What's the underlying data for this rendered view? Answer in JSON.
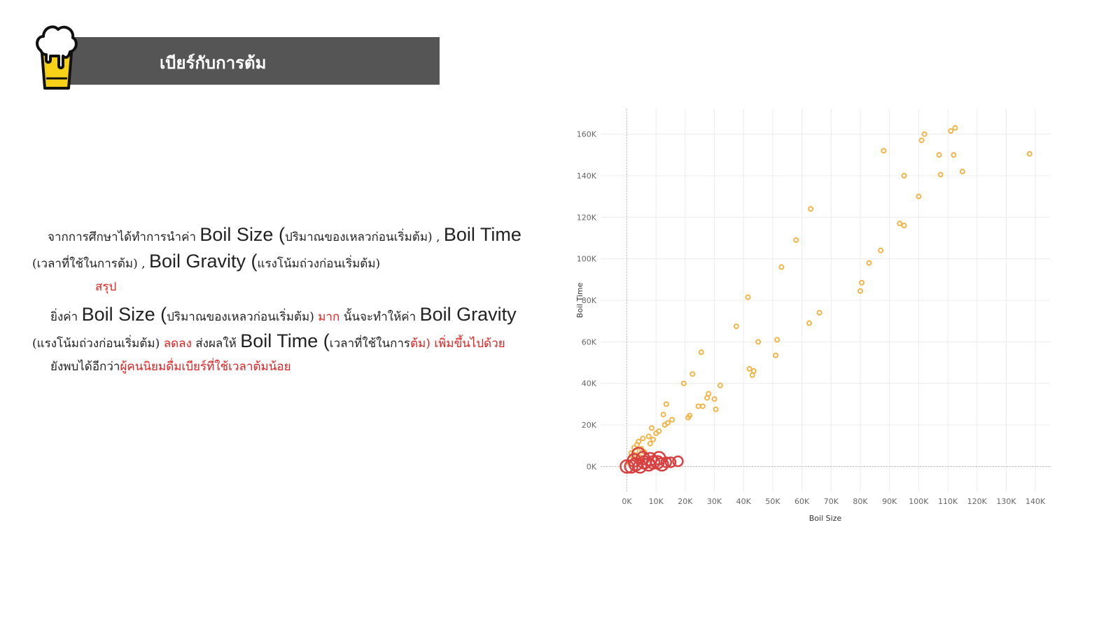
{
  "header": {
    "title": "เบียร์กับการต้ม"
  },
  "text": {
    "l1_a": "จากการศึกษาได้ทำการนำค่า ",
    "l1_b": "Boil Size",
    "l1_c": " (",
    "l1_d": "ปริมาณของเหลวก่อนเริ่มต้ม",
    "l1_e": ") , ",
    "l1_f": "Boil Time",
    "l2_a": "(เวลาที่ใช้ในการต้ม) , ",
    "l2_b": "Boil Gravity",
    "l2_c": " (",
    "l2_d": "แรงโน้มถ่วงก่อนเริ่มต้ม",
    "l2_e": ")",
    "l3": "สรุป",
    "l4_a": "ยิ่งค่า ",
    "l4_b": "Boil Size",
    "l4_c": " (",
    "l4_d": "ปริมาณของเหลวก่อนเริ่มต้ม",
    "l4_e": ") ",
    "l4_f": "มาก",
    "l4_g": " นั้นจะทำให้ค่า ",
    "l4_h": "Boil Gravity",
    "l5_a": "(แรงโน้มถ่วงก่อนเริ่มต้ม) ",
    "l5_b": "ลดลง",
    "l5_c": " ส่งผลให้ ",
    "l5_d": "Boil Time",
    "l5_e": " (",
    "l5_f": "เวลาที่ใช้ในการ",
    "l5_g": "ต้ม) เพิ่มขึ้นไปด้วย",
    "l6_a": "ยังพบได้อีกว่า",
    "l6_b": "ผู้คนนิยมดื่มเบียร์ที่ใช้เวลาต้มน้อย"
  },
  "colors": {
    "header_bg": "#555555",
    "accent_red": "#e02020",
    "point_orange": "#f2b447",
    "point_red": "#d94040",
    "beer_yellow": "#f7d117"
  },
  "icons": {
    "logo": "beer-glass-icon"
  },
  "chart_data": {
    "type": "scatter",
    "xlabel": "Boil Size",
    "ylabel": "Boil Time",
    "xlim": [
      -9000,
      145000
    ],
    "ylim": [
      -12000,
      172000
    ],
    "x_ticks": [
      0,
      10000,
      20000,
      30000,
      40000,
      50000,
      60000,
      70000,
      80000,
      90000,
      100000,
      110000,
      120000,
      130000,
      140000
    ],
    "x_tick_labels": [
      "0K",
      "10K",
      "20K",
      "30K",
      "40K",
      "50K",
      "60K",
      "70K",
      "80K",
      "90K",
      "100K",
      "110K",
      "120K",
      "130K",
      "140K"
    ],
    "y_ticks": [
      0,
      20000,
      40000,
      60000,
      80000,
      100000,
      120000,
      140000,
      160000
    ],
    "y_tick_labels": [
      "0K",
      "20K",
      "40K",
      "60K",
      "80K",
      "100K",
      "120K",
      "140K",
      "160K"
    ],
    "grid": true,
    "series": [
      {
        "color": "#f2b447",
        "points": [
          [
            88000,
            152000
          ],
          [
            101000,
            157000
          ],
          [
            102000,
            160000
          ],
          [
            111000,
            161500
          ],
          [
            112500,
            163000
          ],
          [
            107000,
            150000
          ],
          [
            112000,
            150000
          ],
          [
            95000,
            140000
          ],
          [
            107500,
            140500
          ],
          [
            115000,
            142000
          ],
          [
            138000,
            150500
          ],
          [
            100000,
            130000
          ],
          [
            93500,
            117000
          ],
          [
            95000,
            116000
          ],
          [
            63000,
            124000
          ],
          [
            58000,
            109000
          ],
          [
            87000,
            104000
          ],
          [
            83000,
            98000
          ],
          [
            53000,
            96000
          ],
          [
            80500,
            88500
          ],
          [
            80000,
            84500
          ],
          [
            41500,
            81500
          ],
          [
            62500,
            69000
          ],
          [
            66000,
            74000
          ],
          [
            37500,
            67500
          ],
          [
            51500,
            61000
          ],
          [
            45000,
            60000
          ],
          [
            51000,
            53500
          ],
          [
            25500,
            55000
          ],
          [
            42000,
            47000
          ],
          [
            43500,
            46000
          ],
          [
            43000,
            44000
          ],
          [
            22500,
            44500
          ],
          [
            32000,
            39000
          ],
          [
            19500,
            40000
          ],
          [
            28000,
            35000
          ],
          [
            27500,
            33000
          ],
          [
            30000,
            32500
          ],
          [
            24500,
            29000
          ],
          [
            26000,
            29000
          ],
          [
            30500,
            27500
          ],
          [
            21500,
            24500
          ],
          [
            21000,
            23500
          ],
          [
            13500,
            30000
          ],
          [
            12500,
            25000
          ],
          [
            15500,
            22500
          ],
          [
            14000,
            21000
          ],
          [
            13000,
            20000
          ],
          [
            8500,
            18500
          ],
          [
            11000,
            17000
          ],
          [
            10000,
            16000
          ],
          [
            7500,
            14500
          ],
          [
            5500,
            13500
          ],
          [
            9000,
            13000
          ],
          [
            4000,
            12000
          ],
          [
            3500,
            10500
          ],
          [
            8000,
            11000
          ],
          [
            2500,
            9000
          ],
          [
            5000,
            8500
          ],
          [
            3000,
            7500
          ],
          [
            1500,
            6500
          ],
          [
            6000,
            7000
          ],
          [
            2000,
            5000
          ],
          [
            4500,
            4500
          ],
          [
            1000,
            3500
          ],
          [
            500,
            2000
          ]
        ]
      },
      {
        "color": "#d94040",
        "points": [
          [
            0,
            0
          ],
          [
            1500,
            0
          ],
          [
            3000,
            1000
          ],
          [
            4500,
            0
          ],
          [
            6000,
            2000
          ],
          [
            7500,
            1000
          ],
          [
            9000,
            2000
          ],
          [
            10500,
            2000
          ],
          [
            12000,
            1000
          ],
          [
            13500,
            2000
          ],
          [
            15000,
            2000
          ],
          [
            17500,
            2500
          ],
          [
            2500,
            3000
          ],
          [
            5500,
            4000
          ],
          [
            8000,
            3500
          ],
          [
            11000,
            4000
          ],
          [
            4000,
            6000
          ]
        ]
      }
    ]
  }
}
